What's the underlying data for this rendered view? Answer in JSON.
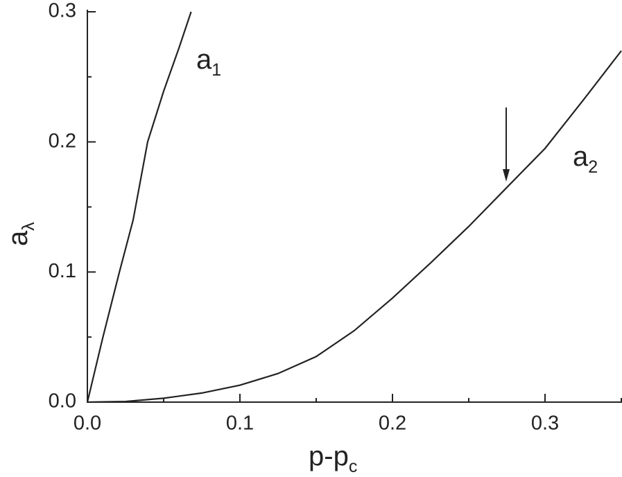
{
  "chart_data": {
    "type": "line",
    "x_label": {
      "text": "p-p",
      "sub": "c"
    },
    "y_label": {
      "text": "a",
      "sub": "λ"
    },
    "xlim": [
      0,
      0.35
    ],
    "ylim": [
      0,
      0.3
    ],
    "xticks": [
      {
        "value": 0,
        "label": "0.0"
      },
      0.1,
      0.2,
      0.3
    ],
    "yticks": [
      {
        "value": 0,
        "label": "0.0"
      },
      0.1,
      0.2,
      0.3
    ],
    "xminor": [
      0.05,
      0.15,
      0.25,
      0.35
    ],
    "yminor": [
      0.05,
      0.15,
      0.25
    ],
    "series": [
      {
        "name": {
          "text": "a",
          "sub": "1"
        },
        "color": "#222222",
        "x": [
          0,
          0.01,
          0.021,
          0.03,
          0.0395,
          0.05,
          0.06,
          0.068
        ],
        "values": [
          0,
          0.049,
          0.1,
          0.14,
          0.2,
          0.239,
          0.272,
          0.3
        ]
      },
      {
        "name": {
          "text": "a",
          "sub": "2"
        },
        "color": "#222222",
        "x": [
          0,
          0.025,
          0.05,
          0.075,
          0.1,
          0.125,
          0.15,
          0.175,
          0.2,
          0.225,
          0.25,
          0.275,
          0.3,
          0.325,
          0.35
        ],
        "values": [
          0,
          0.0005,
          0.003,
          0.007,
          0.013,
          0.022,
          0.035,
          0.055,
          0.08,
          0.107,
          0.135,
          0.165,
          0.195,
          0.232,
          0.27
        ]
      }
    ]
  }
}
